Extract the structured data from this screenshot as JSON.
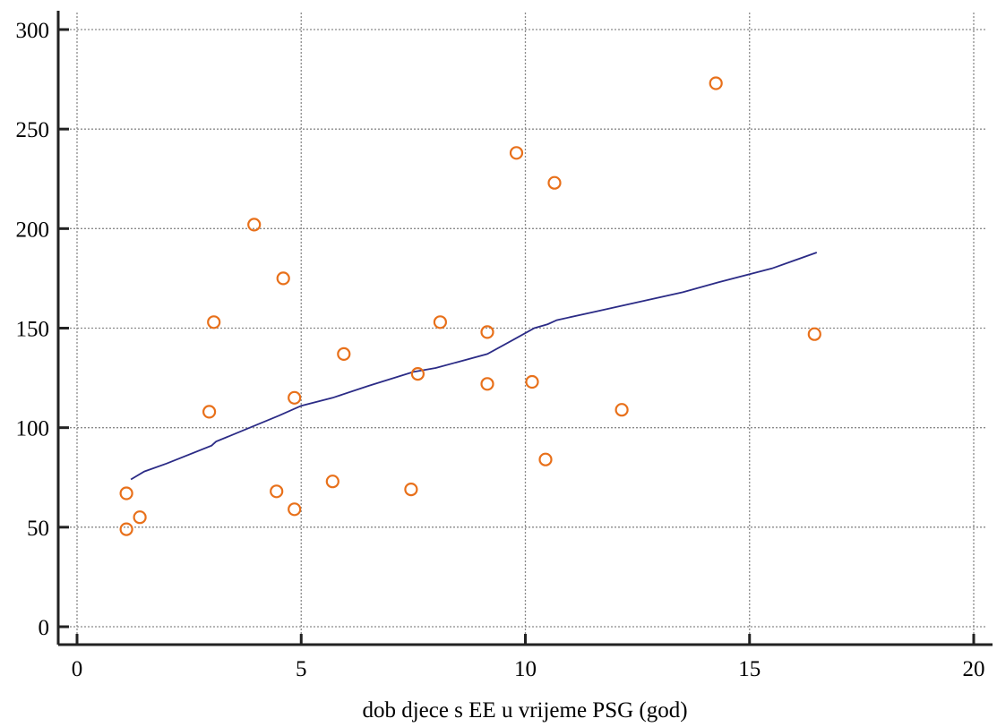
{
  "chart_data": {
    "type": "scatter",
    "title": "",
    "xlabel": "dob djece s EE u vrijeme PSG (god)",
    "ylabel": "",
    "xlim": [
      0,
      20
    ],
    "ylim": [
      0,
      300
    ],
    "x_ticks": [
      0,
      5,
      10,
      15,
      20
    ],
    "y_ticks": [
      0,
      50,
      100,
      150,
      200,
      250,
      300
    ],
    "x_tick_labels": [
      "0",
      "5",
      "10",
      "15",
      "20"
    ],
    "y_tick_labels": [
      "0",
      "50",
      "100",
      "150",
      "200",
      "250",
      "300"
    ],
    "grid": true,
    "legend": "none",
    "series": [
      {
        "kind": "points",
        "color": "#e8701a",
        "x": [
          1.1,
          1.1,
          1.4,
          2.95,
          3.05,
          3.95,
          4.45,
          4.6,
          4.85,
          4.85,
          5.7,
          5.95,
          7.45,
          7.6,
          8.1,
          9.15,
          9.15,
          9.8,
          10.15,
          10.45,
          10.65,
          12.15,
          14.25,
          16.45
        ],
        "y": [
          49,
          67,
          55,
          108,
          153,
          202,
          68,
          175,
          59,
          115,
          73,
          137,
          69,
          127,
          153,
          122,
          148,
          238,
          123,
          84,
          223,
          109,
          273,
          147
        ]
      },
      {
        "kind": "line",
        "color": "#2b2b86",
        "x": [
          1.2,
          1.5,
          2.0,
          3.0,
          3.1,
          4.5,
          5.0,
          5.7,
          6.5,
          7.5,
          8.0,
          9.15,
          9.8,
          10.2,
          10.5,
          10.7,
          11.5,
          12.5,
          13.5,
          14.3,
          15.5,
          16.5
        ],
        "y": [
          74,
          78,
          82,
          91,
          93,
          106,
          111,
          115,
          121,
          128,
          130,
          137,
          145,
          150,
          152,
          154,
          158,
          163,
          168,
          173,
          180,
          188
        ]
      }
    ]
  }
}
